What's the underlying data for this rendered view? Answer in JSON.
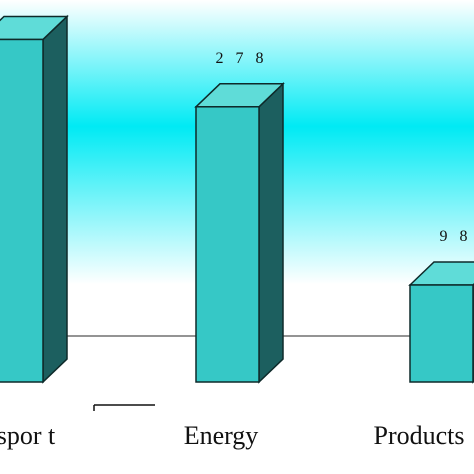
{
  "chart_data": {
    "type": "bar",
    "style": "3d",
    "categories": [
      "spor t",
      "Energy",
      "Products"
    ],
    "values": [
      346,
      278,
      98
    ],
    "value_labels": [
      "",
      "2 7 8",
      "9 8"
    ],
    "title": "",
    "xlabel": "",
    "ylabel": "",
    "ylim": [
      0,
      390
    ],
    "grid": false,
    "colors": {
      "bar_front": "#36c8c6",
      "bar_top": "#5fdcd8",
      "bar_side": "#1c5f5f",
      "bar_edge": "#0e2a2a",
      "background_gradient": [
        "#ffffff",
        "#00eaf4",
        "#ffffff"
      ]
    }
  }
}
